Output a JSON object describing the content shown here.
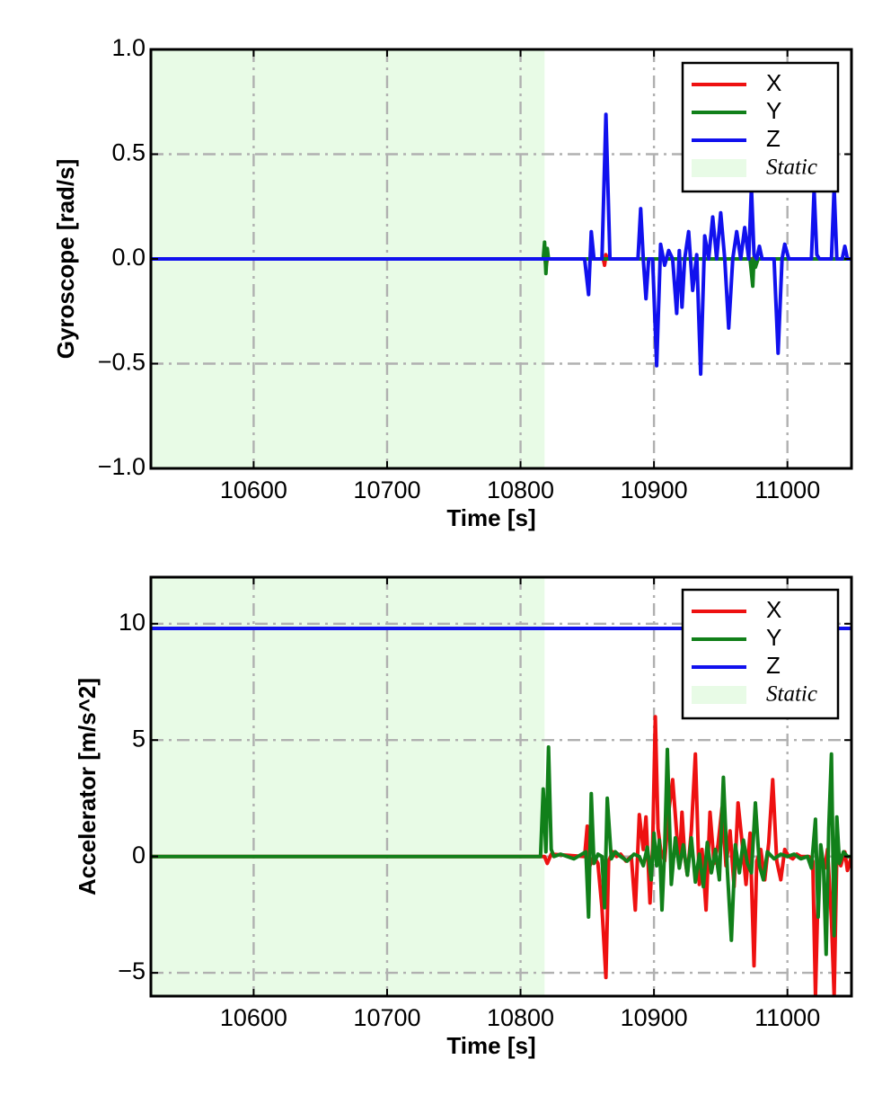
{
  "chart_data": [
    {
      "type": "line",
      "xlabel": "Time [s]",
      "ylabel": "Gyroscope [rad/s]",
      "xlim": [
        10523,
        11048
      ],
      "ylim": [
        -1.0,
        1.0
      ],
      "xticks": [
        10600,
        10700,
        10800,
        10900,
        11000
      ],
      "yticks": [
        1.0,
        0.5,
        0.0,
        -0.5,
        -1.0
      ],
      "ytick_labels": [
        "1.0",
        "0.5",
        "0.0",
        "−0.5",
        "−1.0"
      ],
      "grid": true,
      "legend_position": "top-right",
      "static_region": {
        "label": "Static",
        "x_start": 10523,
        "x_end": 10818,
        "color": "#e8fbe6"
      },
      "series": [
        {
          "name": "X",
          "color": "#ee1111",
          "x": [
            10523,
            10817,
            10818,
            10819,
            10820,
            10862,
            10863,
            10864,
            10865,
            11048
          ],
          "y": [
            0,
            0,
            0.03,
            -0.04,
            0,
            0,
            -0.03,
            0.02,
            0,
            0
          ]
        },
        {
          "name": "Y",
          "color": "#11801a",
          "x": [
            10523,
            10817,
            10818,
            10819,
            10820,
            10821,
            10972,
            10974,
            10975,
            10976,
            10978,
            11048
          ],
          "y": [
            0,
            0,
            0.08,
            -0.07,
            0.05,
            0,
            0,
            -0.13,
            0.01,
            -0.04,
            0,
            0
          ]
        },
        {
          "name": "Z",
          "color": "#1111ee",
          "x": [
            10523,
            10818,
            10820,
            10848,
            10851,
            10853,
            10855,
            10858,
            10861,
            10864,
            10867,
            10870,
            10888,
            10890,
            10892,
            10894,
            10896,
            10899,
            10902,
            10905,
            10908,
            10911,
            10914,
            10917,
            10919,
            10921,
            10923,
            10926,
            10929,
            10932,
            10935,
            10938,
            10941,
            10944,
            10947,
            10950,
            10953,
            10956,
            10959,
            10962,
            10965,
            10968,
            10971,
            10973,
            10975,
            10977,
            10979,
            10981,
            10990,
            10993,
            10996,
            10998,
            11001,
            11004,
            11018,
            11020,
            11022,
            11024,
            11026,
            11033,
            11035,
            11037,
            11039,
            11041,
            11043,
            11045,
            11048
          ],
          "y": [
            0,
            0,
            0,
            0,
            -0.17,
            0.13,
            0,
            0,
            0,
            0.69,
            0,
            0,
            0,
            0.24,
            0,
            -0.19,
            0,
            0,
            -0.51,
            0.07,
            -0.03,
            0.04,
            0,
            -0.26,
            0.04,
            -0.23,
            0,
            0.13,
            -0.15,
            0.02,
            -0.55,
            0.11,
            0,
            0.2,
            0,
            0.22,
            0,
            -0.33,
            0,
            0.13,
            0,
            0.15,
            0,
            0.34,
            0.02,
            0,
            0.06,
            0,
            0,
            -0.45,
            0,
            0.07,
            0,
            0,
            0,
            0.33,
            0.02,
            0,
            0,
            0,
            0.34,
            0,
            0,
            0,
            0.06,
            0,
            0
          ]
        }
      ]
    },
    {
      "type": "line",
      "xlabel": "Time [s]",
      "ylabel": "Accelerator [m/s^2]",
      "xlim": [
        10523,
        11048
      ],
      "ylim": [
        -6,
        12
      ],
      "xticks": [
        10600,
        10700,
        10800,
        10900,
        11000
      ],
      "yticks": [
        10,
        5,
        0,
        -5
      ],
      "ytick_labels": [
        "10",
        "5",
        "0",
        "−5"
      ],
      "grid": true,
      "legend_position": "top-right",
      "static_region": {
        "label": "Static",
        "x_start": 10523,
        "x_end": 10818,
        "color": "#e8fbe6"
      },
      "series": [
        {
          "name": "X",
          "color": "#ee1111",
          "x": [
            10523,
            10815,
            10818,
            10820,
            10823,
            10848,
            10850,
            10852,
            10855,
            10858,
            10861,
            10864,
            10866,
            10869,
            10872,
            10875,
            10879,
            10883,
            10886,
            10889,
            10892,
            10894,
            10897,
            10899,
            10901,
            10903,
            10905,
            10908,
            10911,
            10914,
            10917,
            10919,
            10921,
            10923,
            10925,
            10928,
            10931,
            10934,
            10936,
            10939,
            10942,
            10945,
            10948,
            10951,
            10954,
            10957,
            10960,
            10963,
            10966,
            10969,
            10972,
            10975,
            10977,
            10980,
            10983,
            10986,
            10989,
            10992,
            10995,
            10998,
            11001,
            11004,
            11007,
            11010,
            11013,
            11016,
            11019,
            11021,
            11023,
            11025,
            11028,
            11030,
            11033,
            11035,
            11037,
            11040,
            11043,
            11045,
            11048
          ],
          "y": [
            0,
            0,
            0,
            -0.3,
            0.1,
            0,
            1.3,
            -0.4,
            0,
            -0.3,
            -2.2,
            -5.2,
            -0.2,
            0.2,
            0,
            0.1,
            -0.2,
            0,
            -2.3,
            1.8,
            0.3,
            1.7,
            -2.0,
            0.4,
            6.0,
            1.2,
            0.3,
            -0.2,
            1.9,
            3.3,
            1.0,
            -0.4,
            1.9,
            0,
            -0.8,
            1.1,
            4.4,
            -1.2,
            0.3,
            -2.3,
            1.9,
            -0.3,
            0.5,
            2.1,
            -0.4,
            1.1,
            -1.3,
            2.3,
            0.6,
            -1.2,
            1.0,
            -4.7,
            -0.2,
            0.3,
            -1.0,
            0.6,
            3.3,
            -0.2,
            -1.0,
            0.3,
            0,
            -0.1,
            0.1,
            0,
            0,
            0,
            -0.2,
            -6.0,
            -1.3,
            0.2,
            -0.5,
            0.3,
            -2.7,
            -6.0,
            0.1,
            -0.4,
            0.2,
            -0.6,
            0
          ]
        },
        {
          "name": "Y",
          "color": "#11801a",
          "x": [
            10523,
            10815,
            10817,
            10819,
            10821,
            10823,
            10825,
            10830,
            10840,
            10849,
            10851,
            10853,
            10855,
            10858,
            10861,
            10863,
            10865,
            10868,
            10871,
            10875,
            10880,
            10885,
            10889,
            10892,
            10895,
            10898,
            10900,
            10902,
            10904,
            10906,
            10908,
            10910,
            10913,
            10916,
            10919,
            10922,
            10925,
            10928,
            10931,
            10934,
            10937,
            10940,
            10943,
            10946,
            10949,
            10952,
            10955,
            10958,
            10961,
            10964,
            10967,
            10970,
            10973,
            10976,
            10979,
            10982,
            10985,
            10990,
            10995,
            11000,
            11005,
            11010,
            11015,
            11018,
            11021,
            11023,
            11025,
            11027,
            11029,
            11031,
            11033,
            11035,
            11037,
            11039,
            11042,
            11045,
            11048
          ],
          "y": [
            0,
            0,
            2.9,
            0.2,
            4.7,
            0.3,
            0,
            0.1,
            -0.1,
            0.2,
            -2.6,
            2.7,
            -0.3,
            0.1,
            0,
            -2.2,
            2.5,
            -0.1,
            0.2,
            0,
            -0.2,
            0.1,
            0,
            -0.4,
            0.4,
            -1.0,
            1.0,
            -0.4,
            0.7,
            -2.3,
            0.3,
            4.6,
            -1.2,
            0.8,
            -0.5,
            0.5,
            -0.8,
            0.8,
            -1.1,
            0.1,
            -1.3,
            0.6,
            -0.7,
            0.3,
            -1.0,
            3.4,
            -0.6,
            -3.6,
            0.5,
            -0.7,
            0.7,
            -0.3,
            -0.7,
            2.3,
            -0.4,
            -1.0,
            0.2,
            -0.1,
            0.1,
            0,
            0.1,
            -0.1,
            0,
            -0.5,
            1.6,
            -2.6,
            0.5,
            -0.4,
            -4.2,
            1.2,
            4.4,
            -3.4,
            1.7,
            -0.3,
            0.2,
            0,
            0
          ]
        },
        {
          "name": "Z",
          "color": "#1111ee",
          "x": [
            10523,
            11048
          ],
          "y": [
            9.8,
            9.8
          ]
        }
      ]
    }
  ]
}
